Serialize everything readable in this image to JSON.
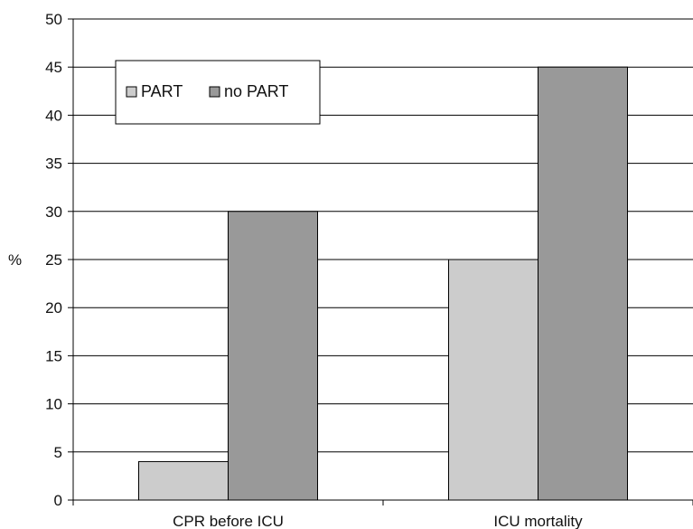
{
  "chart_data": {
    "type": "bar",
    "categories": [
      "CPR before ICU",
      "ICU mortality"
    ],
    "series": [
      {
        "name": "PART",
        "values": [
          4,
          25
        ],
        "color": "#cccccc"
      },
      {
        "name": "no PART",
        "values": [
          30,
          45
        ],
        "color": "#999999"
      }
    ],
    "title": "",
    "xlabel": "",
    "ylabel": "%",
    "ylim": [
      0,
      50
    ],
    "yticks": [
      0,
      5,
      10,
      15,
      20,
      25,
      30,
      35,
      40,
      45,
      50
    ],
    "grid": true,
    "legend_position": "top-left"
  }
}
